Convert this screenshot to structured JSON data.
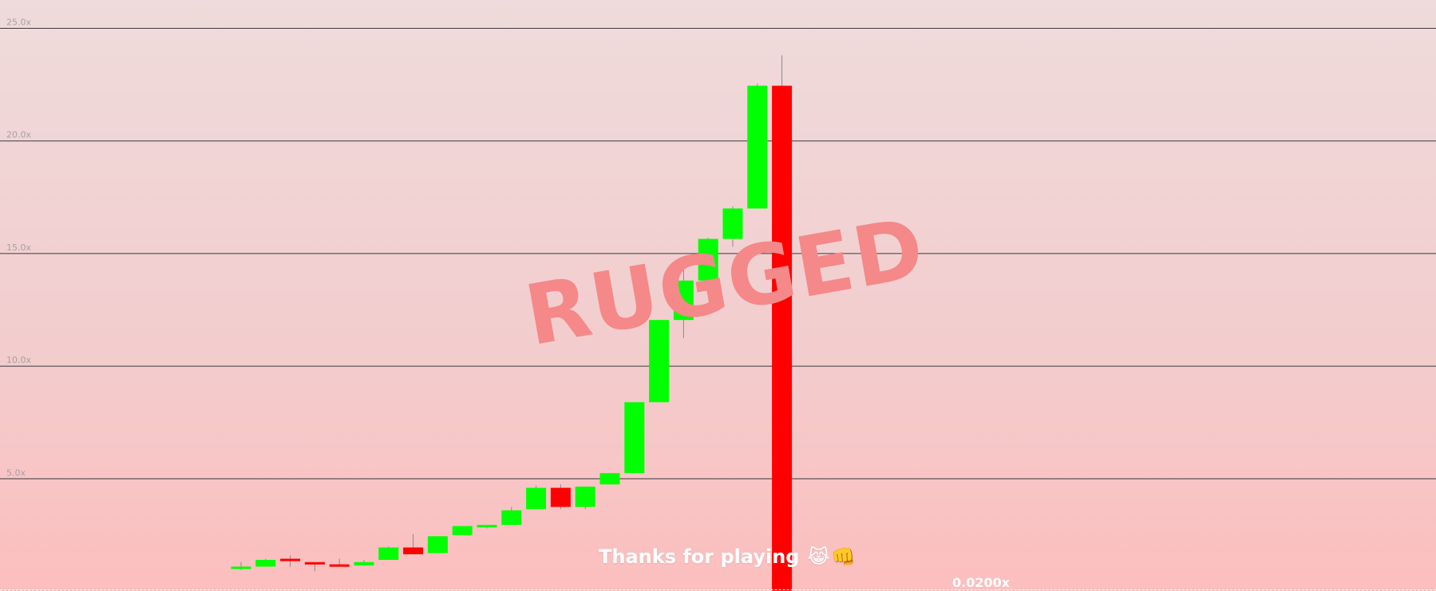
{
  "overlay": {
    "rugged_text": "RUGGED",
    "thanks_text": "Thanks for playing",
    "thanks_emoji": "😹👊",
    "current_multiplier": "0.0200x"
  },
  "colors": {
    "up": "#00ff00",
    "down": "#ff0000",
    "gridline": "#3a3a3a",
    "rugged": "#f58889"
  },
  "chart_data": {
    "type": "candlestick",
    "title": "",
    "xlabel": "",
    "ylabel": "",
    "ylim": [
      0,
      25
    ],
    "y_tick_values": [
      5,
      10,
      15,
      20,
      25
    ],
    "y_tick_labels": [
      "5.0x",
      "10.0x",
      "15.0x",
      "20.0x",
      "25.0x"
    ],
    "grid": true,
    "candles": [
      {
        "open": 1.0,
        "close": 1.1,
        "high": 1.3,
        "low": 0.95
      },
      {
        "open": 1.1,
        "close": 1.4,
        "high": 1.45,
        "low": 1.1
      },
      {
        "open": 1.45,
        "close": 1.35,
        "high": 1.6,
        "low": 1.1
      },
      {
        "open": 1.3,
        "close": 1.2,
        "high": 1.3,
        "low": 0.9
      },
      {
        "open": 1.2,
        "close": 1.15,
        "high": 1.45,
        "low": 1.1
      },
      {
        "open": 1.15,
        "close": 1.3,
        "high": 1.4,
        "low": 1.15
      },
      {
        "open": 1.4,
        "close": 1.95,
        "high": 2.0,
        "low": 1.4
      },
      {
        "open": 1.95,
        "close": 1.65,
        "high": 2.55,
        "low": 1.65
      },
      {
        "open": 1.7,
        "close": 2.45,
        "high": 2.45,
        "low": 1.7
      },
      {
        "open": 2.5,
        "close": 2.9,
        "high": 2.9,
        "low": 2.5
      },
      {
        "open": 2.85,
        "close": 2.95,
        "high": 2.95,
        "low": 2.8
      },
      {
        "open": 2.95,
        "close": 3.6,
        "high": 3.75,
        "low": 2.95
      },
      {
        "open": 3.65,
        "close": 4.6,
        "high": 4.7,
        "low": 3.65
      },
      {
        "open": 4.6,
        "close": 3.75,
        "high": 4.75,
        "low": 3.65
      },
      {
        "open": 3.75,
        "close": 4.65,
        "high": 4.65,
        "low": 3.65
      },
      {
        "open": 4.75,
        "close": 5.25,
        "high": 5.25,
        "low": 4.75
      },
      {
        "open": 5.25,
        "close": 8.4,
        "high": 8.4,
        "low": 5.25
      },
      {
        "open": 8.4,
        "close": 12.05,
        "high": 12.05,
        "low": 8.4
      },
      {
        "open": 12.05,
        "close": 13.8,
        "high": 14.4,
        "low": 11.25
      },
      {
        "open": 13.8,
        "close": 15.65,
        "high": 15.7,
        "low": 13.8
      },
      {
        "open": 15.65,
        "close": 17.0,
        "high": 17.1,
        "low": 15.3
      },
      {
        "open": 17.0,
        "close": 22.45,
        "high": 22.55,
        "low": 17.0
      },
      {
        "open": 22.45,
        "close": 0.02,
        "high": 23.8,
        "low": 0.02
      }
    ]
  }
}
